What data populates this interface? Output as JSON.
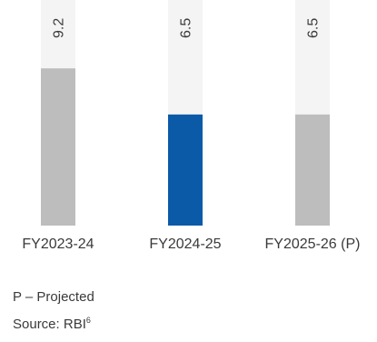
{
  "chart_data": {
    "type": "bar",
    "categories": [
      "FY2023-24",
      "FY2024-25",
      "FY2025-26 (P)"
    ],
    "values": [
      9.2,
      6.5,
      6.5
    ],
    "ylim": [
      0,
      13.2
    ],
    "value_label_rotation": "vertical",
    "bar_colors": [
      "#bdbdbd",
      "#0a5aa8",
      "#bdbdbd"
    ],
    "track_color": "#f4f4f4",
    "grid": false,
    "legend": false
  },
  "notes": {
    "projected": "P – Projected",
    "source_label": "Source: RBI",
    "source_ref": "6"
  }
}
